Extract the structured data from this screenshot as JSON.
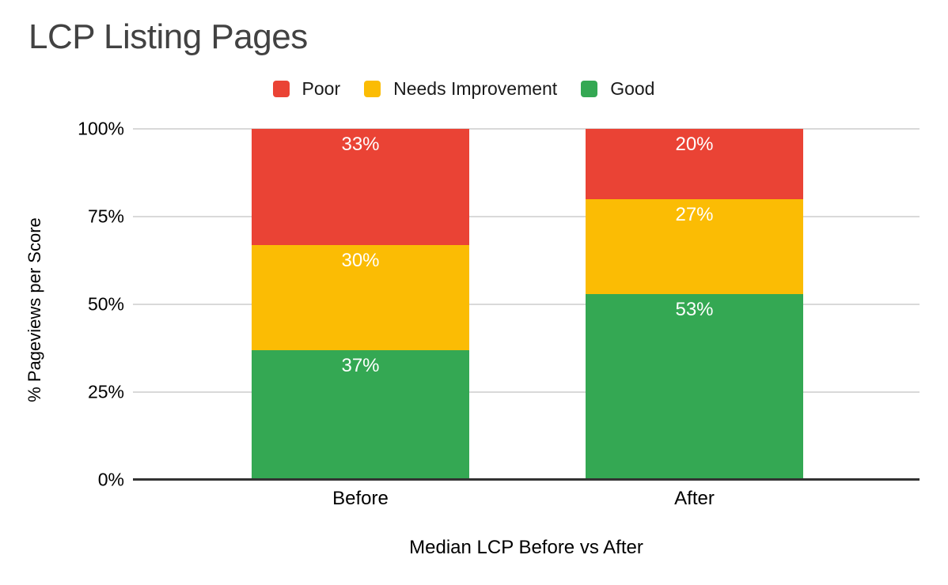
{
  "chart_data": {
    "type": "bar",
    "stacked": true,
    "title": "LCP Listing Pages",
    "xlabel": "Median LCP Before vs After",
    "ylabel": "% Pageviews per Score",
    "categories": [
      "Before",
      "After"
    ],
    "series": [
      {
        "name": "Poor",
        "color": "#EA4335",
        "values": [
          33,
          20
        ]
      },
      {
        "name": "Needs Improvement",
        "color": "#FBBC04",
        "values": [
          30,
          27
        ]
      },
      {
        "name": "Good",
        "color": "#34A853",
        "values": [
          37,
          53
        ]
      }
    ],
    "data_labels": [
      [
        "33%",
        "20%"
      ],
      [
        "30%",
        "27%"
      ],
      [
        "37%",
        "53%"
      ]
    ],
    "ylim": [
      0,
      100
    ],
    "y_ticks": [
      {
        "label": "0%",
        "value": 0
      },
      {
        "label": "25%",
        "value": 25
      },
      {
        "label": "50%",
        "value": 50
      },
      {
        "label": "75%",
        "value": 75
      },
      {
        "label": "100%",
        "value": 100
      }
    ],
    "legend_position": "top",
    "grid": true,
    "colors": {
      "gridline": "#d9d9d9",
      "axis_line": "#333333",
      "title_text": "#424242",
      "axis_text": "#000000",
      "data_label_text": "#ffffff",
      "background": "#ffffff"
    }
  }
}
